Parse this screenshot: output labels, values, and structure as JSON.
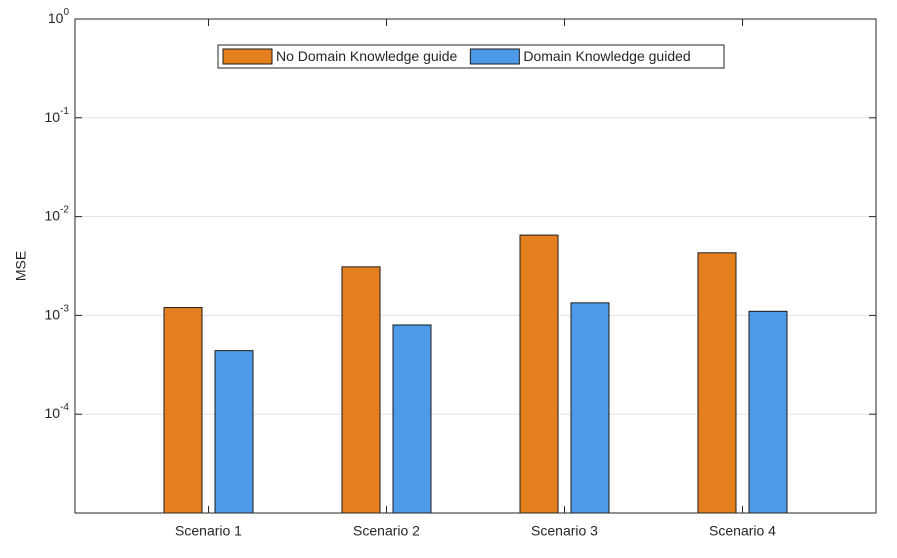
{
  "chart_data": {
    "type": "bar",
    "y_label": "MSE",
    "log_y": true,
    "grid": true,
    "categories": [
      "Scenario 1",
      "Scenario 2",
      "Scenario 3",
      "Scenario 4"
    ],
    "series": [
      {
        "name": "No Domain Knowledge guide",
        "color": "#e6801f",
        "values": [
          0.0012,
          0.0031,
          0.0065,
          0.0043
        ]
      },
      {
        "name": "Domain Knowledge guided",
        "color": "#4d9be8",
        "values": [
          0.00044,
          0.0008,
          0.00134,
          0.0011
        ]
      }
    ],
    "ylim": [
      1e-05,
      1
    ],
    "yticks": [
      {
        "value": 1,
        "label": "10",
        "exponent": "0"
      },
      {
        "value": 0.1,
        "label": "10",
        "exponent": "-1"
      },
      {
        "value": 0.01,
        "label": "10",
        "exponent": "-2"
      },
      {
        "value": 0.001,
        "label": "10",
        "exponent": "-3"
      },
      {
        "value": 0.0001,
        "label": "10",
        "exponent": "-4"
      }
    ],
    "legend": "top"
  }
}
